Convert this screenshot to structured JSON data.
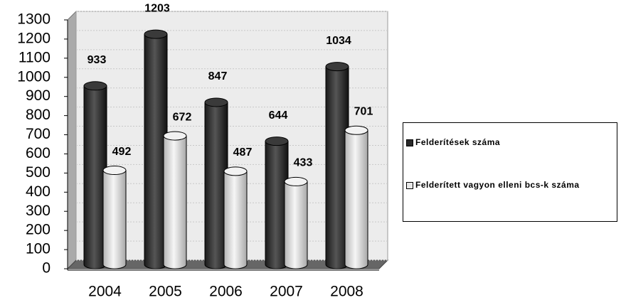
{
  "chart_data": {
    "type": "bar",
    "categories": [
      "2004",
      "2005",
      "2006",
      "2007",
      "2008"
    ],
    "series": [
      {
        "name": "Felderítések száma",
        "color": "#2a2a2a",
        "values": [
          933,
          1203,
          847,
          644,
          1034
        ]
      },
      {
        "name": "Felderített vagyon elleni bcs-k száma",
        "color": "#e8e8e8",
        "values": [
          492,
          672,
          487,
          433,
          701
        ]
      }
    ],
    "ylim": [
      0,
      1300
    ],
    "yticks": [
      0,
      100,
      200,
      300,
      400,
      500,
      600,
      700,
      800,
      900,
      1000,
      1100,
      1200,
      1300
    ],
    "legend": "right"
  }
}
